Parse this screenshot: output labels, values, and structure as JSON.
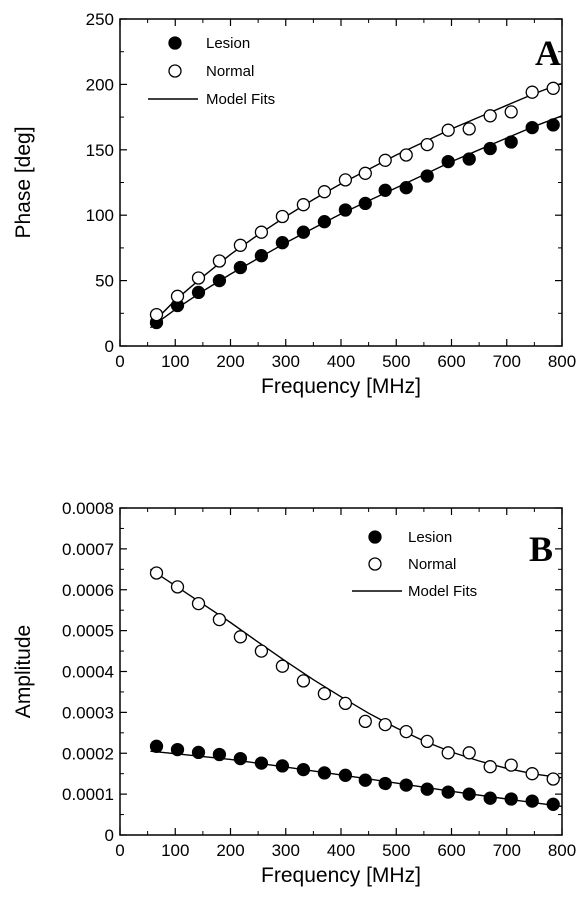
{
  "chart_data": [
    {
      "type": "scatter",
      "panel_label": "A",
      "xlabel": "Frequency [MHz]",
      "ylabel": "Phase [deg]",
      "xlim": [
        0,
        800
      ],
      "ylim": [
        0,
        250
      ],
      "xticks": [
        0,
        100,
        200,
        300,
        400,
        500,
        600,
        700,
        800
      ],
      "yticks": [
        0,
        50,
        100,
        150,
        200,
        250
      ],
      "ytick_labels": [
        "0",
        "50",
        "100",
        "150",
        "200",
        "250"
      ],
      "grid": false,
      "legend_position": "top-left",
      "legend": {
        "model_label": "Model Fits"
      },
      "series": [
        {
          "name": "Lesion",
          "marker": "filled-circle",
          "x": [
            66,
            104,
            142,
            180,
            218,
            256,
            294,
            332,
            370,
            408,
            444,
            480,
            518,
            556,
            594,
            632,
            670,
            708,
            746,
            784
          ],
          "y": [
            18,
            31,
            41,
            50,
            60,
            69,
            79,
            87,
            95,
            104,
            109,
            119,
            121,
            130,
            141,
            143,
            151,
            156,
            167,
            169
          ],
          "fit": {
            "x": [
              55,
              100,
              150,
              200,
              250,
              300,
              350,
              400,
              450,
              500,
              550,
              600,
              650,
              700,
              750,
              800
            ],
            "y": [
              14,
              28,
              42,
              55,
              67,
              79,
              90,
              101,
              111,
              121,
              131,
              141,
              150,
              159,
              168,
              176
            ]
          }
        },
        {
          "name": "Normal",
          "marker": "open-circle",
          "x": [
            66,
            104,
            142,
            180,
            218,
            256,
            294,
            332,
            370,
            408,
            444,
            480,
            518,
            556,
            594,
            632,
            670,
            708,
            746,
            784
          ],
          "y": [
            24,
            38,
            52,
            65,
            77,
            87,
            99,
            108,
            118,
            127,
            132,
            142,
            146,
            154,
            165,
            166,
            176,
            179,
            194,
            197
          ],
          "fit": {
            "x": [
              55,
              100,
              150,
              200,
              250,
              300,
              350,
              400,
              450,
              500,
              550,
              600,
              650,
              700,
              750,
              800
            ],
            "y": [
              16,
              35,
              53,
              70,
              85,
              99,
              112,
              124,
              135,
              146,
              156,
              166,
              175,
              184,
              193,
              201
            ]
          }
        }
      ]
    },
    {
      "type": "scatter",
      "panel_label": "B",
      "xlabel": "Frequency [MHz]",
      "ylabel": "Amplitude",
      "xlim": [
        0,
        800
      ],
      "ylim": [
        0,
        0.0008
      ],
      "xticks": [
        0,
        100,
        200,
        300,
        400,
        500,
        600,
        700,
        800
      ],
      "yticks": [
        0,
        0.0001,
        0.0002,
        0.0003,
        0.0004,
        0.0005,
        0.0006,
        0.0007,
        0.0008
      ],
      "ytick_labels": [
        "0",
        "0.0001",
        "0.0002",
        "0.0003",
        "0.0004",
        "0.0005",
        "0.0006",
        "0.0007",
        "0.0008"
      ],
      "grid": false,
      "legend_position": "top-right",
      "legend": {
        "model_label": "Model Fits"
      },
      "series": [
        {
          "name": "Lesion",
          "marker": "filled-circle",
          "x": [
            66,
            104,
            142,
            180,
            218,
            256,
            294,
            332,
            370,
            408,
            444,
            480,
            518,
            556,
            594,
            632,
            670,
            708,
            746,
            784
          ],
          "y": [
            0.000217,
            0.000209,
            0.000202,
            0.000197,
            0.000187,
            0.000176,
            0.000169,
            0.00016,
            0.000152,
            0.000146,
            0.000134,
            0.000126,
            0.000122,
            0.000112,
            0.000105,
            0.0001,
            9e-05,
            8.8e-05,
            8.3e-05,
            7.5e-05
          ],
          "fit": {
            "x": [
              55,
              100,
              200,
              300,
              400,
              500,
              600,
              700,
              800
            ],
            "y": [
              0.000205,
              0.000199,
              0.000185,
              0.000166,
              0.000147,
              0.000127,
              0.000107,
              8.8e-05,
              7e-05
            ]
          }
        },
        {
          "name": "Normal",
          "marker": "open-circle",
          "x": [
            66,
            104,
            142,
            180,
            218,
            256,
            294,
            332,
            370,
            408,
            444,
            480,
            518,
            556,
            594,
            632,
            670,
            708,
            746,
            784
          ],
          "y": [
            0.000641,
            0.000607,
            0.000566,
            0.000527,
            0.000485,
            0.00045,
            0.000413,
            0.000377,
            0.000346,
            0.000322,
            0.000278,
            0.00027,
            0.000253,
            0.000229,
            0.000201,
            0.000201,
            0.000167,
            0.000171,
            0.00015,
            0.000137
          ],
          "fit": {
            "x": [
              55,
              100,
              150,
              200,
              250,
              300,
              350,
              400,
              450,
              500,
              550,
              600,
              650,
              700,
              750,
              800
            ],
            "y": [
              0.00065,
              0.00061,
              0.000565,
              0.00052,
              0.000472,
              0.000425,
              0.00038,
              0.000338,
              0.000298,
              0.000262,
              0.00023,
              0.000203,
              0.000181,
              0.000163,
              0.000149,
              0.00014
            ]
          }
        }
      ]
    }
  ]
}
